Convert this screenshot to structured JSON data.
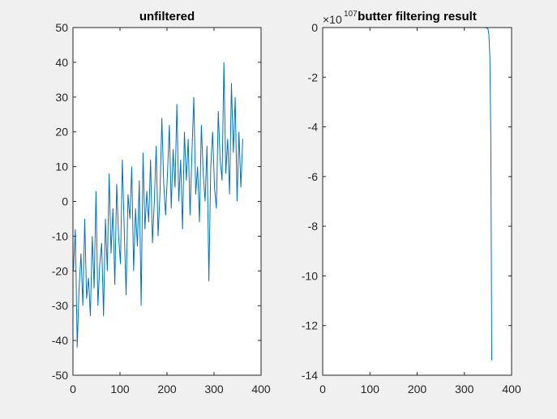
{
  "chart_data": [
    {
      "type": "line",
      "title": "unfiltered",
      "x": [
        1,
        5,
        9,
        13,
        17,
        21,
        25,
        29,
        33,
        37,
        41,
        45,
        49,
        53,
        57,
        61,
        65,
        69,
        73,
        77,
        81,
        85,
        89,
        93,
        97,
        101,
        105,
        109,
        113,
        117,
        121,
        125,
        129,
        133,
        137,
        141,
        145,
        149,
        153,
        157,
        161,
        165,
        169,
        173,
        177,
        181,
        185,
        189,
        193,
        197,
        201,
        205,
        209,
        213,
        217,
        221,
        225,
        229,
        233,
        237,
        241,
        245,
        249,
        253,
        257,
        261,
        265,
        269,
        273,
        277,
        281,
        285,
        289,
        293,
        297,
        301,
        305,
        309,
        313,
        317,
        321,
        325,
        329,
        333,
        337,
        341,
        345,
        349,
        353,
        357,
        361
      ],
      "series": [
        {
          "color": "#0072bd",
          "values": [
            -20,
            -8,
            -42,
            -25,
            -15,
            -30,
            -5,
            -28,
            -22,
            -33,
            -10,
            -25,
            3,
            -30,
            -18,
            -12,
            -33,
            -5,
            -20,
            8,
            -15,
            -2,
            -24,
            5,
            -10,
            -18,
            12,
            -8,
            -27,
            2,
            -5,
            10,
            -20,
            -2,
            -13,
            6,
            -30,
            14,
            -8,
            3,
            -6,
            12,
            -12,
            0,
            16,
            -10,
            2,
            24,
            5,
            -4,
            8,
            22,
            -2,
            15,
            4,
            28,
            0,
            12,
            -8,
            20,
            6,
            18,
            -4,
            14,
            30,
            2,
            10,
            -6,
            22,
            8,
            0,
            16,
            -23,
            10,
            20,
            4,
            -2,
            26,
            12,
            6,
            40,
            8,
            18,
            2,
            34,
            14,
            30,
            0,
            20,
            4,
            18
          ]
        }
      ],
      "xlim": [
        0,
        400
      ],
      "xticks": [
        0,
        100,
        200,
        300,
        400
      ],
      "ylim": [
        -50,
        50
      ],
      "yticks": [
        -50,
        -40,
        -30,
        -20,
        -10,
        0,
        10,
        20,
        30,
        40,
        50
      ]
    },
    {
      "type": "line",
      "title": "butter filtering result",
      "y_multiplier": "×10",
      "y_multiplier_exponent": "107",
      "x": [
        1,
        100,
        200,
        300,
        345,
        350,
        352,
        354,
        356,
        358
      ],
      "series": [
        {
          "color": "#0072bd",
          "values": [
            0,
            0,
            0,
            0,
            0,
            -0.05,
            -0.3,
            -1.2,
            -4.5,
            -13.4
          ]
        }
      ],
      "xlim": [
        0,
        400
      ],
      "xticks": [
        0,
        100,
        200,
        300,
        400
      ],
      "ylim": [
        -14,
        0
      ],
      "yticks": [
        -14,
        -12,
        -10,
        -8,
        -6,
        -4,
        -2,
        0
      ]
    }
  ]
}
